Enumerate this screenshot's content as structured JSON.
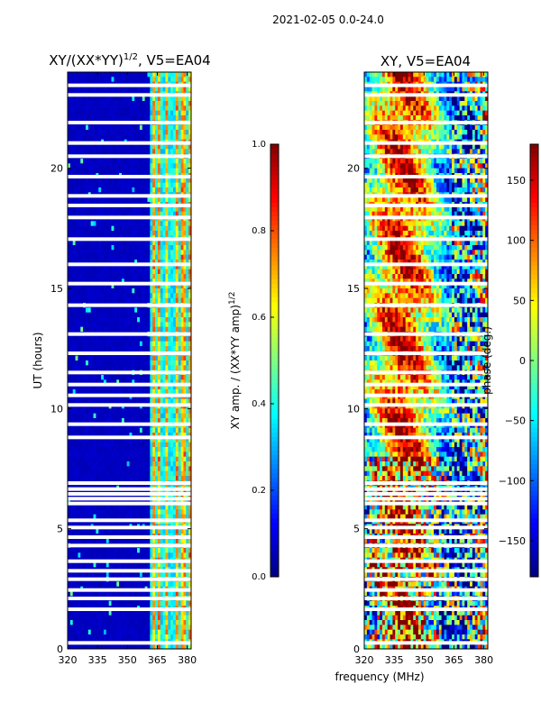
{
  "figure": {
    "suptitle": "2021-02-05 0.0-24.0",
    "shared_xlabel": "frequency (MHz)"
  },
  "chart_data": [
    {
      "type": "heatmap",
      "title_text": "XY/(XX*YY)",
      "title_sup": "1/2",
      "title_suffix": ", V5=EA04",
      "xlabel": "",
      "ylabel": "UT (hours)",
      "xlim": [
        320,
        382
      ],
      "ylim": [
        0,
        24
      ],
      "xticks": [
        320,
        335,
        350,
        365,
        380
      ],
      "yticks": [
        0,
        5,
        10,
        15,
        20
      ],
      "colorbar": {
        "label_text": "XY amp. / (XX*YY amp)",
        "label_sup": "1/2",
        "range": [
          0.0,
          1.0
        ],
        "ticks": [
          "0.0",
          "0.2",
          "0.4",
          "0.6",
          "0.8",
          "1.0"
        ],
        "colormap": "jet"
      },
      "notes": "Low amplitude (~0.05) across 320-361 MHz; elevated, striped amplitude (0.3-0.8) between ~361 and 382 MHz. White gaps mark flagged times.",
      "bright_band_mhz": [
        361,
        382
      ],
      "bright_channels_mhz": [
        363.2,
        366,
        369.5,
        374.8,
        378.2,
        381
      ],
      "flagged_ut_hours": [
        0.25,
        1.65,
        2.1,
        2.45,
        2.9,
        3.25,
        3.65,
        4.3,
        4.65,
        5.05,
        5.35,
        6.05,
        6.25,
        6.45,
        6.65,
        6.9,
        8.8,
        9.35,
        10.15,
        10.55,
        11.0,
        11.5,
        12.3,
        13.1,
        14.3,
        15.2,
        16.0,
        17.05,
        17.95,
        18.45,
        18.85,
        19.65,
        20.5,
        21.05,
        21.9,
        23.05,
        23.45
      ]
    },
    {
      "type": "heatmap",
      "title_text": "XY, V5=EA04",
      "xlabel": "frequency (MHz)",
      "ylabel": "",
      "xlim": [
        320,
        382
      ],
      "ylim": [
        0,
        24
      ],
      "xticks": [
        320,
        335,
        350,
        365,
        380
      ],
      "yticks": [
        0,
        5,
        10,
        15,
        20
      ],
      "colorbar": {
        "label": "phase (deg.)",
        "range": [
          -180,
          180
        ],
        "ticks": [
          "150",
          "100",
          "50",
          "0",
          "−50",
          "−100",
          "−150"
        ],
        "colormap": "jet"
      },
      "notes": "Phase varies smoothly with frequency: red/orange band near 330-345 MHz, yellow-green 345-365 MHz, noisier mixed phases above 365 MHz and in 0-8 h.",
      "flagged_ut_hours": [
        0.25,
        1.65,
        2.1,
        2.45,
        2.9,
        3.25,
        3.65,
        4.3,
        4.65,
        5.05,
        5.35,
        6.05,
        6.25,
        6.45,
        6.65,
        6.9,
        8.8,
        9.35,
        10.15,
        10.55,
        11.0,
        11.5,
        12.3,
        13.1,
        14.3,
        15.2,
        16.0,
        17.05,
        17.95,
        18.45,
        18.85,
        19.65,
        20.5,
        21.05,
        21.9,
        23.05,
        23.45
      ]
    }
  ]
}
